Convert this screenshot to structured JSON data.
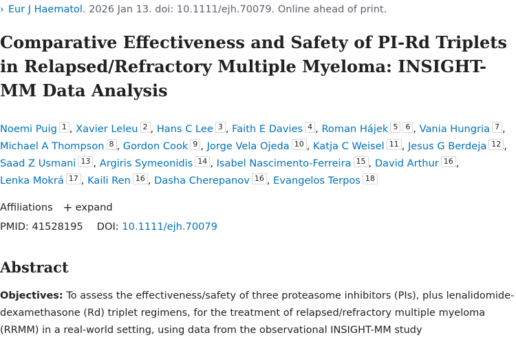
{
  "citation": {
    "journal": "Eur J Haematol",
    "details": ". 2026 Jan 13. doi: 10.1111/ejh.70079. Online ahead of print."
  },
  "title": "Comparative Effectiveness and Safety of PI-Rd Triplets in Relapsed/Refractory Multiple Myeloma: INSIGHT-MM Data Analysis",
  "authors": [
    {
      "name": "Noemi Puig",
      "aff": [
        "1"
      ]
    },
    {
      "name": "Xavier Leleu",
      "aff": [
        "2"
      ]
    },
    {
      "name": "Hans C Lee",
      "aff": [
        "3"
      ]
    },
    {
      "name": "Faith E Davies",
      "aff": [
        "4"
      ]
    },
    {
      "name": "Roman Hájek",
      "aff": [
        "5",
        "6"
      ]
    },
    {
      "name": "Vania Hungria",
      "aff": [
        "7"
      ]
    },
    {
      "name": "Michael A Thompson",
      "aff": [
        "8"
      ]
    },
    {
      "name": "Gordon Cook",
      "aff": [
        "9"
      ]
    },
    {
      "name": "Jorge Vela Ojeda",
      "aff": [
        "10"
      ]
    },
    {
      "name": "Katja C Weisel",
      "aff": [
        "11"
      ]
    },
    {
      "name": "Jesus G Berdeja",
      "aff": [
        "12"
      ]
    },
    {
      "name": "Saad Z Usmani",
      "aff": [
        "13"
      ]
    },
    {
      "name": "Argiris Symeonidis",
      "aff": [
        "14"
      ]
    },
    {
      "name": "Isabel Nascimento-Ferreira",
      "aff": [
        "15"
      ]
    },
    {
      "name": "David Arthur",
      "aff": [
        "16"
      ]
    },
    {
      "name": "Lenka Mokrá",
      "aff": [
        "17"
      ]
    },
    {
      "name": "Kaili Ren",
      "aff": [
        "16"
      ]
    },
    {
      "name": "Dasha Cherepanov",
      "aff": [
        "16"
      ]
    },
    {
      "name": "Evangelos Terpos",
      "aff": [
        "18"
      ]
    }
  ],
  "affiliations": {
    "label": "Affiliations",
    "expand_label": "expand"
  },
  "ids": {
    "pmid_label": "PMID:",
    "pmid": "41528195",
    "doi_label": "DOI:",
    "doi": "10.1111/ejh.70079"
  },
  "abstract": {
    "heading": "Abstract",
    "objectives_label": "Objectives:",
    "objectives_text": "To assess the effectiveness/safety of three proteasome inhibitors (PIs), plus lenalidomide-dexamethasone (Rd) triplet regimens, for the treatment of relapsed/refractory multiple myeloma (RRMM) in a real-world setting, using data from the observational INSIGHT-MM study"
  },
  "colors": {
    "link": "#0071bc",
    "text": "#212121",
    "muted": "#5b616b"
  }
}
